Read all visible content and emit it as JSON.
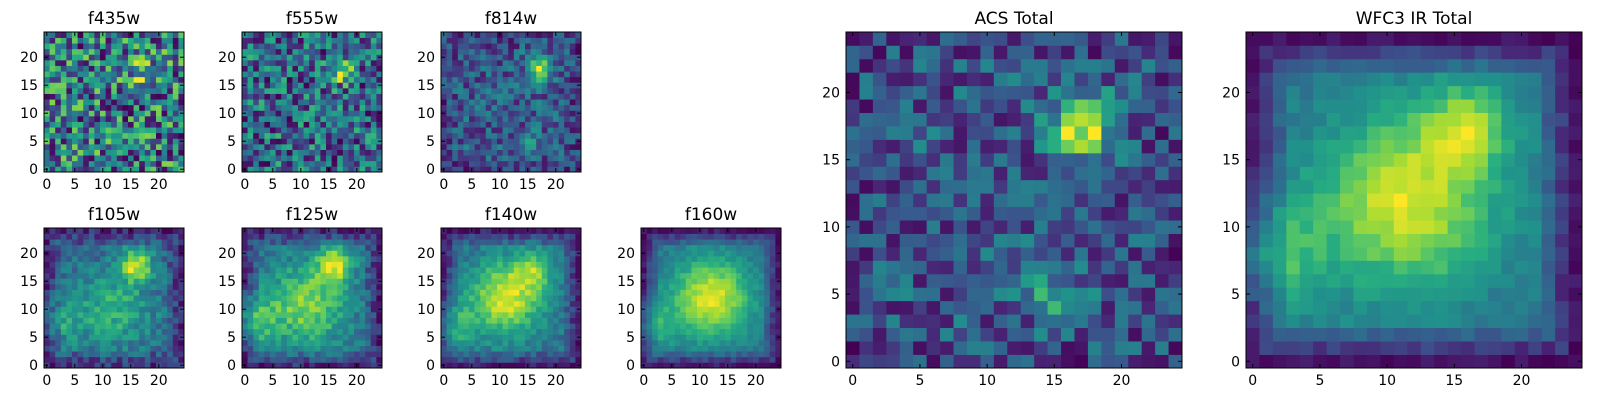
{
  "figure": {
    "colormap": "viridis",
    "colors": {
      "low": "#440154",
      "mid": "#21918c",
      "high": "#fde725"
    }
  },
  "chart_data": [
    {
      "type": "heatmap",
      "title": "f435w",
      "grid": 25,
      "xticks": [
        "0",
        "5",
        "10",
        "15",
        "20"
      ],
      "yticks": [
        "0",
        "5",
        "10",
        "15",
        "20"
      ],
      "sources": [
        {
          "x": 17,
          "y": 18,
          "amp": 0.25,
          "sigma": 2.2
        }
      ],
      "base": 0.62,
      "noise": 0.38,
      "edge_dark": 0.0
    },
    {
      "type": "heatmap",
      "title": "f555w",
      "grid": 25,
      "xticks": [
        "0",
        "5",
        "10",
        "15",
        "20"
      ],
      "yticks": [
        "0",
        "5",
        "10",
        "15",
        "20"
      ],
      "sources": [
        {
          "x": 17.5,
          "y": 17.5,
          "amp": 0.5,
          "sigma": 1.5
        }
      ],
      "base": 0.5,
      "noise": 0.32,
      "edge_dark": 0.0
    },
    {
      "type": "heatmap",
      "title": "f814w",
      "grid": 25,
      "xticks": [
        "0",
        "5",
        "10",
        "15",
        "20"
      ],
      "yticks": [
        "0",
        "5",
        "10",
        "15",
        "20"
      ],
      "sources": [
        {
          "x": 17,
          "y": 18,
          "amp": 0.6,
          "sigma": 1.4
        },
        {
          "x": 15,
          "y": 5,
          "amp": 0.3,
          "sigma": 1.2
        }
      ],
      "base": 0.38,
      "noise": 0.18,
      "edge_dark": 0.1
    },
    {
      "type": "heatmap",
      "title": "f105w",
      "grid": 25,
      "xticks": [
        "0",
        "5",
        "10",
        "15",
        "20"
      ],
      "yticks": [
        "0",
        "5",
        "10",
        "15",
        "20"
      ],
      "sources": [
        {
          "x": 16,
          "y": 18,
          "amp": 0.55,
          "sigma": 2.0
        },
        {
          "x": 12,
          "y": 10,
          "amp": 0.3,
          "sigma": 5
        },
        {
          "x": 2,
          "y": 8,
          "amp": 0.2,
          "sigma": 3
        }
      ],
      "base": 0.38,
      "noise": 0.12,
      "edge_dark": 0.2
    },
    {
      "type": "heatmap",
      "title": "f125w",
      "grid": 25,
      "xticks": [
        "0",
        "5",
        "10",
        "15",
        "20"
      ],
      "yticks": [
        "0",
        "5",
        "10",
        "15",
        "20"
      ],
      "sources": [
        {
          "x": 16,
          "y": 18,
          "amp": 0.45,
          "sigma": 2.2
        },
        {
          "x": 11,
          "y": 11,
          "amp": 0.4,
          "sigma": 5
        },
        {
          "x": 1,
          "y": 8,
          "amp": 0.3,
          "sigma": 3
        }
      ],
      "base": 0.36,
      "noise": 0.1,
      "edge_dark": 0.22
    },
    {
      "type": "heatmap",
      "title": "f140w",
      "grid": 25,
      "xticks": [
        "0",
        "5",
        "10",
        "15",
        "20"
      ],
      "yticks": [
        "0",
        "5",
        "10",
        "15",
        "20"
      ],
      "sources": [
        {
          "x": 11,
          "y": 12,
          "amp": 0.5,
          "sigma": 4.5
        },
        {
          "x": 16,
          "y": 17,
          "amp": 0.3,
          "sigma": 2.5
        },
        {
          "x": 1,
          "y": 7,
          "amp": 0.25,
          "sigma": 3
        }
      ],
      "base": 0.34,
      "noise": 0.08,
      "edge_dark": 0.25
    },
    {
      "type": "heatmap",
      "title": "f160w",
      "grid": 25,
      "xticks": [
        "0",
        "5",
        "10",
        "15",
        "20"
      ],
      "yticks": [
        "0",
        "5",
        "10",
        "15",
        "20"
      ],
      "sources": [
        {
          "x": 12,
          "y": 12,
          "amp": 0.55,
          "sigma": 5
        },
        {
          "x": 1,
          "y": 7,
          "amp": 0.25,
          "sigma": 3
        }
      ],
      "base": 0.32,
      "noise": 0.06,
      "edge_dark": 0.3
    },
    {
      "type": "heatmap",
      "title": "ACS Total",
      "grid": 25,
      "xticks": [
        "0",
        "5",
        "10",
        "15",
        "20"
      ],
      "yticks": [
        "0",
        "5",
        "10",
        "15",
        "20"
      ],
      "sources": [
        {
          "x": 17,
          "y": 17.5,
          "amp": 0.55,
          "sigma": 1.6
        },
        {
          "x": 15,
          "y": 5,
          "amp": 0.2,
          "sigma": 1.5
        }
      ],
      "base": 0.42,
      "noise": 0.16,
      "edge_dark": 0.05
    },
    {
      "type": "heatmap",
      "title": "WFC3 IR Total",
      "grid": 25,
      "xticks": [
        "0",
        "5",
        "10",
        "15",
        "20"
      ],
      "yticks": [
        "0",
        "5",
        "10",
        "15",
        "20"
      ],
      "sources": [
        {
          "x": 11.5,
          "y": 12,
          "amp": 0.5,
          "sigma": 4.5
        },
        {
          "x": 16,
          "y": 17.5,
          "amp": 0.35,
          "sigma": 2.2
        },
        {
          "x": 1,
          "y": 8,
          "amp": 0.28,
          "sigma": 3
        }
      ],
      "base": 0.34,
      "noise": 0.05,
      "edge_dark": 0.3
    }
  ]
}
